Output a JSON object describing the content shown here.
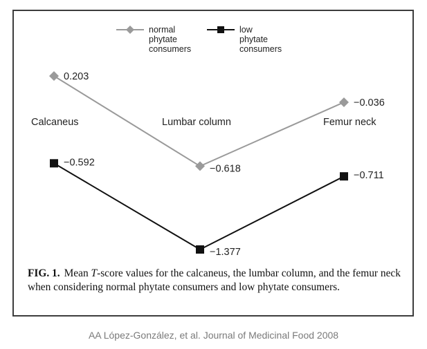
{
  "chart_data": {
    "type": "line",
    "categories": [
      "Calcaneus",
      "Lumbar column",
      "Femur neck"
    ],
    "series": [
      {
        "name": "normal phytate consumers",
        "name_lines": [
          "normal",
          "phytate",
          "consumers"
        ],
        "values": [
          0.203,
          -0.618,
          -0.036
        ],
        "labels": [
          "0.203",
          "−0.618",
          "−0.036"
        ],
        "color": "#9a9a9a",
        "marker": "diamond"
      },
      {
        "name": "low phytate consumers",
        "name_lines": [
          "low",
          "phytate",
          "consumers"
        ],
        "values": [
          -0.592,
          -1.377,
          -0.711
        ],
        "labels": [
          "−0.592",
          "−1.377",
          "−0.711"
        ],
        "color": "#111111",
        "marker": "square"
      }
    ],
    "legend_position": "top",
    "grid": false
  },
  "caption": {
    "label": "FIG. 1.",
    "text_before": "Mean ",
    "text_italic": "T",
    "text_after": "-score values for the calcaneus, the lumbar column, and the femur neck when considering normal phytate consumers and low phytate consumers."
  },
  "credit": "AA López-González, et al. Journal of Medicinal Food 2008"
}
